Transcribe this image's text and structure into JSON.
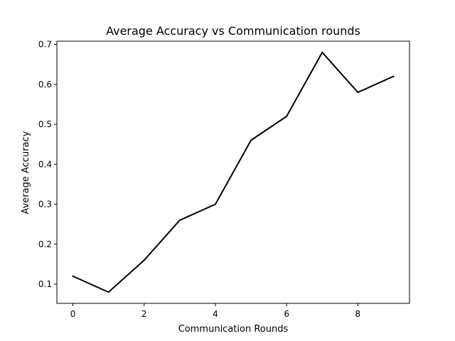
{
  "chart_data": {
    "type": "line",
    "title": "Average Accuracy vs Communication rounds",
    "xlabel": "Communication Rounds",
    "ylabel": "Average Accuracy",
    "x": [
      0,
      1,
      2,
      3,
      4,
      5,
      6,
      7,
      8,
      9
    ],
    "series": [
      {
        "values": [
          0.12,
          0.08,
          0.16,
          0.26,
          0.3,
          0.46,
          0.52,
          0.68,
          0.58,
          0.62
        ],
        "color": "#000000"
      }
    ],
    "xlim": [
      -0.45,
      9.45
    ],
    "ylim": [
      0.052,
      0.708
    ],
    "xticks": [
      0,
      2,
      4,
      6,
      8
    ],
    "xtick_labels": [
      "0",
      "2",
      "4",
      "6",
      "8"
    ],
    "yticks": [
      0.1,
      0.2,
      0.3,
      0.4,
      0.5,
      0.6,
      0.7
    ],
    "ytick_labels": [
      "0.1",
      "0.2",
      "0.3",
      "0.4",
      "0.5",
      "0.6",
      "0.7"
    ],
    "grid": false,
    "legend": false
  }
}
